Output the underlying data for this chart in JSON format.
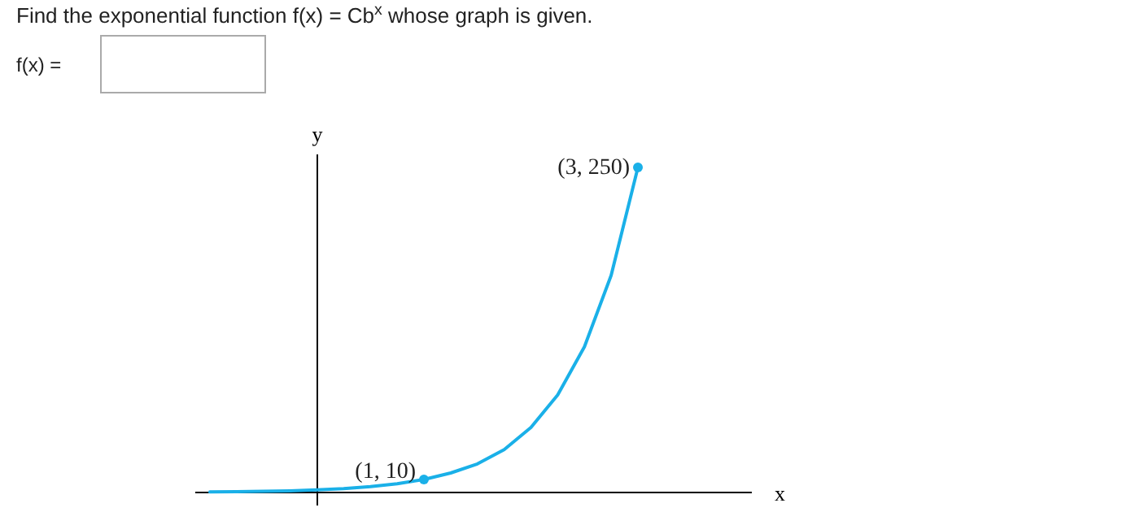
{
  "chart_data": {
    "type": "line",
    "title": "Find the exponential function f(x) = Cb$^{x}$ whose graph is given.",
    "ylabel": "y",
    "ylim": [
      0,
      260
    ],
    "categories": [
      null,
      null,
      null,
      null,
      null,
      null,
      null,
      null,
      null,
      null,
      null,
      null,
      null,
      null,
      null,
      null,
      null
    ],
    "series": [
      {
        "color": "#1ab0e8",
        "values": [
          0.4,
          0.6,
          0.9,
          1.3,
          2,
          3,
          4.5,
          6.7,
          10,
          15,
          22,
          33,
          50,
          75,
          112,
          167,
          250
        ],
        "value_labels": [
          null,
          null,
          null,
          null,
          null,
          null,
          null,
          null,
          "(1, 10)",
          null,
          null,
          null,
          null,
          null,
          null,
          null,
          "(3, 250)"
        ]
      }
    ],
    "annotations": [
      "f(x) =",
      "x"
    ]
  }
}
